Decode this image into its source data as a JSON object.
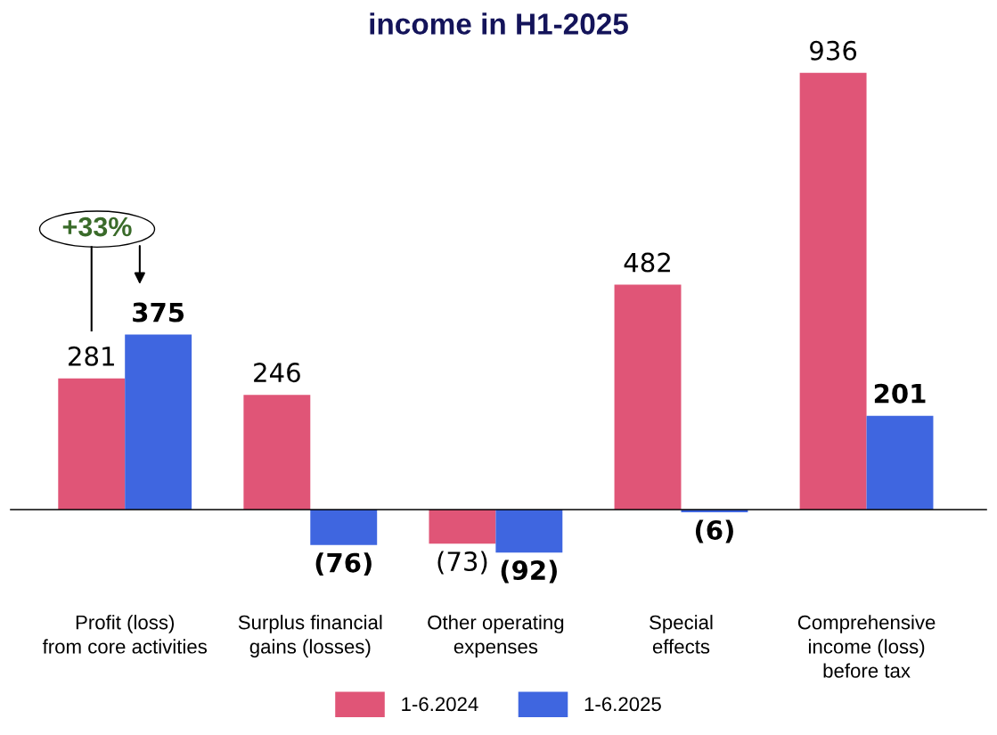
{
  "chart_data": {
    "type": "bar",
    "title": "income in H1-2025",
    "categories": [
      "Profit (loss)\nfrom core activities",
      "Surplus financial\ngains (losses)",
      "Other operating\nexpenses",
      "Special\neffects",
      "Comprehensive\nincome (loss)\nbefore tax"
    ],
    "series": [
      {
        "name": "1-6.2024",
        "color": "#e05577",
        "values": [
          281,
          246,
          -73,
          482,
          936
        ],
        "value_labels": [
          "281",
          "246",
          "(73)",
          "482",
          "936"
        ]
      },
      {
        "name": "1-6.2025",
        "color": "#3f66e0",
        "values": [
          375,
          -76,
          -92,
          -6,
          201
        ],
        "value_labels": [
          "375",
          "(76)",
          "(92)",
          "(6)",
          "201"
        ]
      }
    ],
    "annotations": [
      "+33%"
    ],
    "legend": "bottom"
  }
}
